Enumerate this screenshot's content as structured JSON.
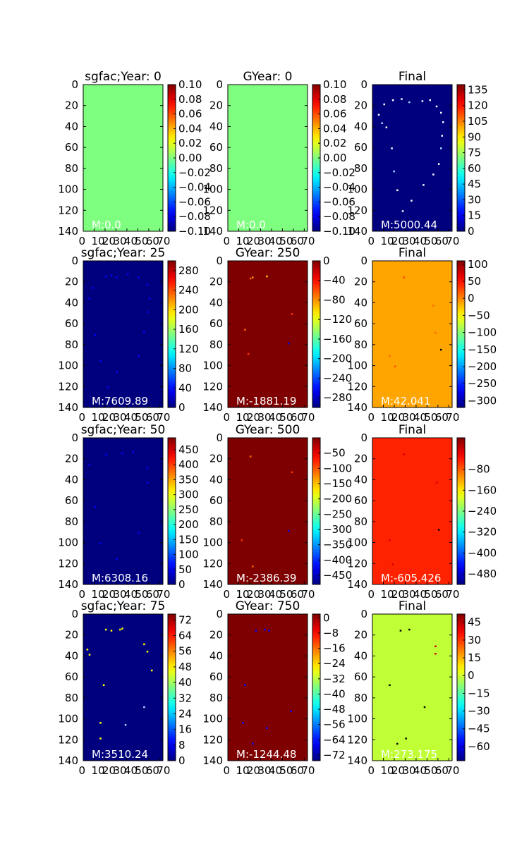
{
  "chart_data": [
    {
      "type": "heatmap",
      "title": "sgfac;Year: 0",
      "mean_label": "M:0.0",
      "background_color": "#7fff7f",
      "y_ticks": [
        "0",
        "20",
        "40",
        "60",
        "80",
        "100",
        "120",
        "140"
      ],
      "x_tick_labels": [
        "0",
        "10",
        "20",
        "30",
        "40",
        "50",
        "60",
        "70"
      ],
      "colorbar_ticks": [
        "0.10",
        "0.08",
        "0.06",
        "0.04",
        "0.02",
        "0.00",
        "−0.02",
        "−0.04",
        "−0.06",
        "−0.08",
        "−0.10"
      ],
      "colorbar_range": [
        -0.1,
        0.1
      ],
      "speckles": []
    },
    {
      "type": "heatmap",
      "title": "GYear: 0",
      "mean_label": "M:0.0",
      "background_color": "#7fff7f",
      "y_ticks": [
        "0",
        "20",
        "40",
        "60",
        "80",
        "100",
        "120",
        "140"
      ],
      "x_tick_labels": [
        "0",
        "10",
        "20",
        "30",
        "40",
        "50",
        "60",
        "70"
      ],
      "colorbar_ticks": [
        "0.10",
        "0.08",
        "0.06",
        "0.04",
        "0.02",
        "0.00",
        "−0.02",
        "−0.04",
        "−0.06",
        "−0.08",
        "−0.10"
      ],
      "colorbar_range": [
        -0.1,
        0.1
      ],
      "speckles": []
    },
    {
      "type": "heatmap",
      "title": "Final",
      "mean_label": "M:5000.44",
      "background_color": "#00007f",
      "y_ticks": [
        "0",
        "20",
        "40",
        "60",
        "80",
        "100",
        "120",
        "140"
      ],
      "x_tick_labels": [
        "0",
        "10",
        "20",
        "30",
        "40",
        "50",
        "60",
        "70"
      ],
      "colorbar_ticks": [
        "135",
        "120",
        "105",
        "90",
        "75",
        "60",
        "45",
        "30",
        "15",
        "0"
      ],
      "colorbar_range": [
        0,
        140
      ],
      "speckles": [
        {
          "col": 10,
          "row": 18,
          "color": "#ffffff"
        },
        {
          "col": 18,
          "row": 14,
          "color": "#ffffff"
        },
        {
          "col": 26,
          "row": 13,
          "color": "#ffffff"
        },
        {
          "col": 33,
          "row": 16,
          "color": "#aaddff"
        },
        {
          "col": 45,
          "row": 15,
          "color": "#ffffff"
        },
        {
          "col": 52,
          "row": 14,
          "color": "#ffffff"
        },
        {
          "col": 58,
          "row": 20,
          "color": "#ffffff"
        },
        {
          "col": 62,
          "row": 26,
          "color": "#ffffff"
        },
        {
          "col": 64,
          "row": 35,
          "color": "#ffffff"
        },
        {
          "col": 63,
          "row": 48,
          "color": "#ffffff"
        },
        {
          "col": 62,
          "row": 60,
          "color": "#aaddff"
        },
        {
          "col": 60,
          "row": 75,
          "color": "#ffffff"
        },
        {
          "col": 55,
          "row": 85,
          "color": "#ffffff"
        },
        {
          "col": 46,
          "row": 95,
          "color": "#ffffff"
        },
        {
          "col": 35,
          "row": 110,
          "color": "#ffffff"
        },
        {
          "col": 27,
          "row": 120,
          "color": "#ffffff"
        },
        {
          "col": 22,
          "row": 100,
          "color": "#ffffff"
        },
        {
          "col": 19,
          "row": 82,
          "color": "#aaddff"
        },
        {
          "col": 17,
          "row": 60,
          "color": "#ffffff"
        },
        {
          "col": 12,
          "row": 40,
          "color": "#ffffff"
        },
        {
          "col": 5,
          "row": 28,
          "color": "#ffffff"
        },
        {
          "col": 8,
          "row": 36,
          "color": "#aaddff"
        }
      ]
    },
    {
      "type": "heatmap",
      "title": "sgfac;Year: 25",
      "mean_label": "M:7609.89",
      "background_color": "#00007f",
      "y_ticks": [
        "0",
        "20",
        "40",
        "60",
        "80",
        "100",
        "120",
        "140"
      ],
      "x_tick_labels": [
        "0",
        "10",
        "20",
        "30",
        "40",
        "50",
        "60",
        "70"
      ],
      "colorbar_ticks": [
        "280",
        "240",
        "200",
        "160",
        "120",
        "80",
        "40",
        "0"
      ],
      "colorbar_range": [
        0,
        300
      ],
      "speckles": [
        {
          "col": 20,
          "row": 14,
          "color": "#0000ff"
        },
        {
          "col": 25,
          "row": 13,
          "color": "#0000ff"
        },
        {
          "col": 30,
          "row": 15,
          "color": "#0000ff"
        },
        {
          "col": 40,
          "row": 12,
          "color": "#0000ff"
        },
        {
          "col": 50,
          "row": 15,
          "color": "#0000ff"
        },
        {
          "col": 58,
          "row": 22,
          "color": "#0000ff"
        },
        {
          "col": 60,
          "row": 35,
          "color": "#0000ff"
        },
        {
          "col": 58,
          "row": 48,
          "color": "#0000ff"
        },
        {
          "col": 55,
          "row": 67,
          "color": "#0000ff"
        },
        {
          "col": 50,
          "row": 90,
          "color": "#0000ff"
        },
        {
          "col": 30,
          "row": 105,
          "color": "#0000ff"
        },
        {
          "col": 22,
          "row": 120,
          "color": "#0000ff"
        },
        {
          "col": 15,
          "row": 95,
          "color": "#0000ff"
        },
        {
          "col": 10,
          "row": 70,
          "color": "#0000ff"
        },
        {
          "col": 5,
          "row": 35,
          "color": "#0000ff"
        },
        {
          "col": 8,
          "row": 25,
          "color": "#0000ff"
        }
      ]
    },
    {
      "type": "heatmap",
      "title": "GYear: 250",
      "mean_label": "M:-1881.19",
      "background_color": "#7f0000",
      "y_ticks": [
        "0",
        "20",
        "40",
        "60",
        "80",
        "100",
        "120",
        "140"
      ],
      "x_tick_labels": [
        "0",
        "10",
        "20",
        "30",
        "40",
        "50",
        "60",
        "70"
      ],
      "colorbar_ticks": [
        "0",
        "−40",
        "−80",
        "−120",
        "−160",
        "−200",
        "−240",
        "−280"
      ],
      "colorbar_range": [
        -300,
        0
      ],
      "speckles": [
        {
          "col": 20,
          "row": 16,
          "color": "#ff6600"
        },
        {
          "col": 22,
          "row": 15,
          "color": "#ff9900"
        },
        {
          "col": 35,
          "row": 14,
          "color": "#ffcc00"
        },
        {
          "col": 58,
          "row": 50,
          "color": "#ff3300"
        },
        {
          "col": 55,
          "row": 78,
          "color": "#0000ff"
        },
        {
          "col": 15,
          "row": 65,
          "color": "#ff6600"
        },
        {
          "col": 18,
          "row": 88,
          "color": "#ff3300"
        }
      ]
    },
    {
      "type": "heatmap",
      "title": "Final",
      "mean_label": "M:42.041",
      "background_color": "#ffa500",
      "y_ticks": [
        "0",
        "20",
        "40",
        "60",
        "80",
        "100",
        "120",
        "140"
      ],
      "x_tick_labels": [
        "0",
        "10",
        "20",
        "30",
        "40",
        "50",
        "60",
        "70"
      ],
      "colorbar_ticks": [
        "100",
        "50",
        "0",
        "−50",
        "−100",
        "−150",
        "−200",
        "−250",
        "−300"
      ],
      "colorbar_range": [
        -320,
        110
      ],
      "speckles": [
        {
          "col": 28,
          "row": 15,
          "color": "#ff4400"
        },
        {
          "col": 55,
          "row": 42,
          "color": "#ff6600"
        },
        {
          "col": 57,
          "row": 68,
          "color": "#ff6600"
        },
        {
          "col": 62,
          "row": 84,
          "color": "#000000"
        },
        {
          "col": 15,
          "row": 90,
          "color": "#ff6600"
        },
        {
          "col": 20,
          "row": 100,
          "color": "#ff4400"
        }
      ]
    },
    {
      "type": "heatmap",
      "title": "sgfac;Year: 50",
      "mean_label": "M:6308.16",
      "background_color": "#00007f",
      "y_ticks": [
        "0",
        "20",
        "40",
        "60",
        "80",
        "100",
        "120",
        "140"
      ],
      "x_tick_labels": [
        "0",
        "10",
        "20",
        "30",
        "40",
        "50",
        "60",
        "70"
      ],
      "colorbar_ticks": [
        "450",
        "400",
        "350",
        "300",
        "250",
        "200",
        "150",
        "100",
        "50",
        "0"
      ],
      "colorbar_range": [
        0,
        490
      ],
      "speckles": [
        {
          "col": 20,
          "row": 15,
          "color": "#0000ff"
        },
        {
          "col": 35,
          "row": 14,
          "color": "#0000ff"
        },
        {
          "col": 45,
          "row": 13,
          "color": "#0000ff"
        },
        {
          "col": 58,
          "row": 28,
          "color": "#0000ff"
        },
        {
          "col": 58,
          "row": 42,
          "color": "#0000ff"
        },
        {
          "col": 50,
          "row": 90,
          "color": "#0000ff"
        },
        {
          "col": 30,
          "row": 115,
          "color": "#0000ff"
        },
        {
          "col": 15,
          "row": 100,
          "color": "#0000ff"
        },
        {
          "col": 10,
          "row": 65,
          "color": "#0000ff"
        },
        {
          "col": 5,
          "row": 25,
          "color": "#0000ff"
        }
      ]
    },
    {
      "type": "heatmap",
      "title": "GYear: 500",
      "mean_label": "M:-2386.39",
      "background_color": "#7f0000",
      "y_ticks": [
        "0",
        "20",
        "40",
        "60",
        "80",
        "100",
        "120",
        "140"
      ],
      "x_tick_labels": [
        "0",
        "10",
        "20",
        "30",
        "40",
        "50",
        "60",
        "70"
      ],
      "colorbar_ticks": [
        "−50",
        "−100",
        "−150",
        "−200",
        "−250",
        "−300",
        "−350",
        "−400",
        "−450"
      ],
      "colorbar_range": [
        -480,
        0
      ],
      "speckles": [
        {
          "col": 20,
          "row": 17,
          "color": "#ff6600"
        },
        {
          "col": 58,
          "row": 32,
          "color": "#ff3300"
        },
        {
          "col": 55,
          "row": 88,
          "color": "#0000ff"
        },
        {
          "col": 12,
          "row": 97,
          "color": "#ff3300"
        },
        {
          "col": 22,
          "row": 122,
          "color": "#ff6600"
        }
      ]
    },
    {
      "type": "heatmap",
      "title": "Final",
      "mean_label": "M:-605.426",
      "background_color": "#ff2200",
      "y_ticks": [
        "0",
        "20",
        "40",
        "60",
        "80",
        "100",
        "120",
        "140"
      ],
      "x_tick_labels": [
        "0",
        "10",
        "20",
        "30",
        "40",
        "50",
        "60",
        "70"
      ],
      "colorbar_ticks": [
        "−80",
        "−160",
        "−240",
        "−320",
        "−400",
        "−480"
      ],
      "colorbar_range": [
        -520,
        40
      ],
      "speckles": [
        {
          "col": 28,
          "row": 15,
          "color": "#cc0000"
        },
        {
          "col": 58,
          "row": 42,
          "color": "#cc0000"
        },
        {
          "col": 60,
          "row": 87,
          "color": "#000000"
        },
        {
          "col": 15,
          "row": 97,
          "color": "#cc0000"
        },
        {
          "col": 18,
          "row": 120,
          "color": "#cc0000"
        }
      ]
    },
    {
      "type": "heatmap",
      "title": "sgfac;Year: 75",
      "mean_label": "M:3510.24",
      "background_color": "#00007f",
      "y_ticks": [
        "0",
        "20",
        "40",
        "60",
        "80",
        "100",
        "120",
        "140"
      ],
      "x_tick_labels": [
        "0",
        "10",
        "20",
        "30",
        "40",
        "50",
        "60",
        "70"
      ],
      "colorbar_ticks": [
        "72",
        "64",
        "56",
        "48",
        "40",
        "32",
        "24",
        "16",
        "8",
        "0"
      ],
      "colorbar_range": [
        0,
        75
      ],
      "speckles": [
        {
          "col": 20,
          "row": 14,
          "color": "#ffff00"
        },
        {
          "col": 25,
          "row": 15,
          "color": "#ffff00"
        },
        {
          "col": 33,
          "row": 14,
          "color": "#ffff00"
        },
        {
          "col": 35,
          "row": 13,
          "color": "#ffff00"
        },
        {
          "col": 55,
          "row": 28,
          "color": "#ffff00"
        },
        {
          "col": 58,
          "row": 35,
          "color": "#ffff00"
        },
        {
          "col": 62,
          "row": 53,
          "color": "#ffff00"
        },
        {
          "col": 55,
          "row": 88,
          "color": "#aaddff"
        },
        {
          "col": 3,
          "row": 33,
          "color": "#ffff00"
        },
        {
          "col": 5,
          "row": 38,
          "color": "#ffff00"
        },
        {
          "col": 18,
          "row": 67,
          "color": "#ffff00"
        },
        {
          "col": 15,
          "row": 103,
          "color": "#ffff00"
        },
        {
          "col": 15,
          "row": 118,
          "color": "#ffff00"
        },
        {
          "col": 38,
          "row": 105,
          "color": "#aaddff"
        }
      ]
    },
    {
      "type": "heatmap",
      "title": "GYear: 750",
      "mean_label": "M:-1244.48",
      "background_color": "#7f0000",
      "y_ticks": [
        "0",
        "20",
        "40",
        "60",
        "80",
        "100",
        "120",
        "140"
      ],
      "x_tick_labels": [
        "0",
        "10",
        "20",
        "30",
        "40",
        "50",
        "60",
        "70"
      ],
      "colorbar_ticks": [
        "0",
        "−8",
        "−16",
        "−24",
        "−32",
        "−40",
        "−48",
        "−56",
        "−64",
        "−72"
      ],
      "colorbar_range": [
        -75,
        2
      ],
      "speckles": [
        {
          "col": 25,
          "row": 15,
          "color": "#0000ff"
        },
        {
          "col": 33,
          "row": 14,
          "color": "#0000ff"
        },
        {
          "col": 37,
          "row": 15,
          "color": "#0000ff"
        },
        {
          "col": 15,
          "row": 67,
          "color": "#0000ff"
        },
        {
          "col": 57,
          "row": 92,
          "color": "#0000ff"
        },
        {
          "col": 35,
          "row": 108,
          "color": "#0000ff"
        },
        {
          "col": 13,
          "row": 103,
          "color": "#0000ff"
        },
        {
          "col": 22,
          "row": 123,
          "color": "#0000ff"
        }
      ]
    },
    {
      "type": "heatmap",
      "title": "Final",
      "mean_label": "M:273.175",
      "background_color": "#c0ff36",
      "y_ticks": [
        "0",
        "20",
        "40",
        "60",
        "80",
        "100",
        "120",
        "140"
      ],
      "x_tick_labels": [
        "0",
        "10",
        "20",
        "30",
        "40",
        "50",
        "60",
        "70"
      ],
      "colorbar_ticks": [
        "45",
        "30",
        "15",
        "0",
        "−15",
        "−30",
        "−45",
        "−60"
      ],
      "colorbar_range": [
        -72,
        52
      ],
      "speckles": [
        {
          "col": 25,
          "row": 15,
          "color": "#000000"
        },
        {
          "col": 33,
          "row": 14,
          "color": "#000000"
        },
        {
          "col": 57,
          "row": 30,
          "color": "#cc0000"
        },
        {
          "col": 57,
          "row": 37,
          "color": "#cc0000"
        },
        {
          "col": 15,
          "row": 67,
          "color": "#000000"
        },
        {
          "col": 47,
          "row": 88,
          "color": "#000000"
        },
        {
          "col": 30,
          "row": 118,
          "color": "#000000"
        },
        {
          "col": 22,
          "row": 123,
          "color": "#000000"
        }
      ]
    }
  ]
}
